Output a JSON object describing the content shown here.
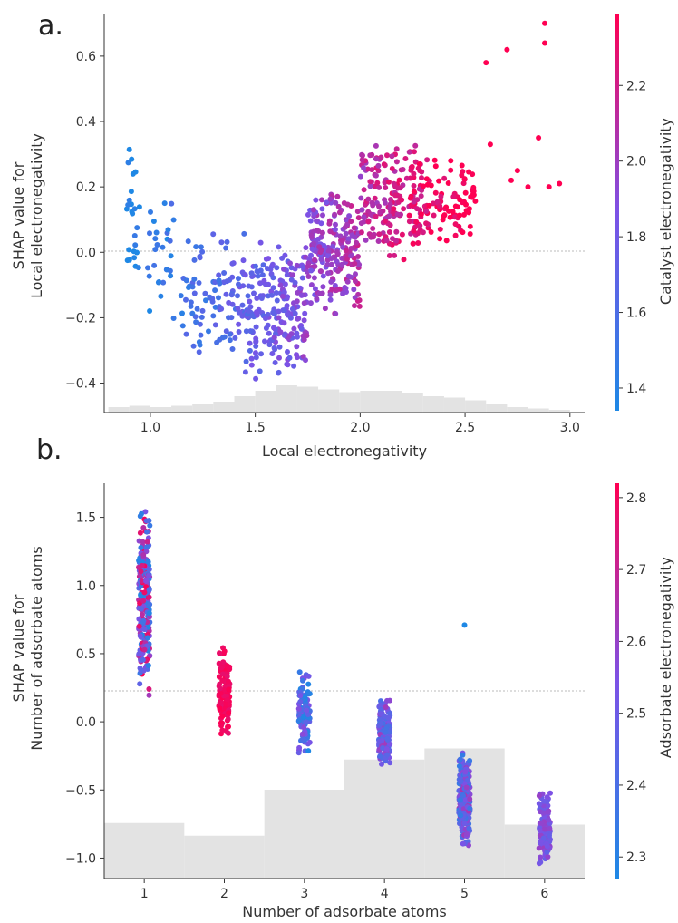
{
  "chart_data": [
    {
      "panel": "a.",
      "type": "scatter",
      "xlabel": "Local electronegativity",
      "ylabel_lines": [
        "SHAP value for",
        "Local electronegativity"
      ],
      "xlim": [
        0.78,
        3.07
      ],
      "ylim": [
        -0.49,
        0.73
      ],
      "xticks": [
        "1.0",
        "1.5",
        "2.0",
        "2.5",
        "3.0"
      ],
      "yticks": [
        "0.6",
        "0.4",
        "0.2",
        "0.0",
        "−0.2",
        "−0.4"
      ],
      "colorbar": {
        "label": "Catalyst electronegativity",
        "ticks": [
          "1.4",
          "1.6",
          "1.8",
          "2.0",
          "2.2"
        ],
        "range": [
          1.34,
          2.39
        ],
        "colors": [
          "#1e88e5",
          "#7c52e6",
          "#ff0052"
        ]
      },
      "histogram": {
        "bins": [
          0.85,
          0.95,
          1.05,
          1.15,
          1.25,
          1.35,
          1.45,
          1.55,
          1.65,
          1.75,
          1.85,
          1.95,
          2.05,
          2.15,
          2.25,
          2.35,
          2.45,
          2.55,
          2.65,
          2.75,
          2.85,
          2.95
        ],
        "heights": [
          0.2,
          0.25,
          0.2,
          0.25,
          0.3,
          0.4,
          0.6,
          0.8,
          1.0,
          0.95,
          0.85,
          0.75,
          0.8,
          0.8,
          0.7,
          0.6,
          0.55,
          0.45,
          0.3,
          0.2,
          0.15,
          0.1
        ]
      },
      "clusters": [
        {
          "x": [
            0.88,
            0.95
          ],
          "y": [
            -0.24,
            0.38
          ],
          "n": 25
        },
        {
          "x": [
            0.98,
            1.15
          ],
          "y": [
            -0.24,
            0.24
          ],
          "n": 30
        },
        {
          "x": [
            1.15,
            1.45
          ],
          "y": [
            -0.35,
            0.08
          ],
          "n": 100
        },
        {
          "x": [
            1.45,
            1.75
          ],
          "y": [
            -0.4,
            0.05
          ],
          "n": 220
        },
        {
          "x": [
            1.75,
            2.0
          ],
          "y": [
            -0.2,
            0.2
          ],
          "n": 230
        },
        {
          "x": [
            2.0,
            2.3
          ],
          "y": [
            -0.05,
            0.35
          ],
          "n": 200
        },
        {
          "x": [
            2.3,
            2.55
          ],
          "y": [
            0.0,
            0.3
          ],
          "n": 90
        }
      ],
      "outliers": [
        [
          2.6,
          0.58
        ],
        [
          2.7,
          0.62
        ],
        [
          2.88,
          0.7
        ],
        [
          2.88,
          0.64
        ],
        [
          2.75,
          0.25
        ],
        [
          2.85,
          0.35
        ],
        [
          2.95,
          0.21
        ],
        [
          2.62,
          0.33
        ],
        [
          2.72,
          0.22
        ],
        [
          2.8,
          0.2
        ],
        [
          2.9,
          0.2
        ]
      ]
    },
    {
      "panel": "b.",
      "type": "scatter",
      "xlabel": "Number of adsorbate atoms",
      "ylabel_lines": [
        "SHAP value for",
        "Number of adsorbate atoms"
      ],
      "xlim": [
        0.5,
        6.5
      ],
      "ylim": [
        -1.15,
        1.75
      ],
      "xticks": [
        "1",
        "2",
        "3",
        "4",
        "5",
        "6"
      ],
      "yticks": [
        "1.5",
        "1.0",
        "0.5",
        "0.0",
        "−0.5",
        "−1.0"
      ],
      "colorbar": {
        "label": "Adsorbate electronegativity",
        "ticks": [
          "2.3",
          "2.4",
          "2.5",
          "2.6",
          "2.7",
          "2.8"
        ],
        "range": [
          2.27,
          2.82
        ],
        "colors": [
          "#1e88e5",
          "#7c52e6",
          "#ff0052"
        ]
      },
      "histogram": {
        "categories": [
          1,
          2,
          3,
          4,
          5,
          6
        ],
        "heights": [
          0.35,
          0.27,
          0.56,
          0.75,
          0.82,
          0.34
        ]
      },
      "clusters": [
        {
          "x": 1,
          "y": [
            0.15,
            1.63
          ],
          "n": 240
        },
        {
          "x": 2,
          "y": [
            -0.17,
            0.58
          ],
          "n": 130
        },
        {
          "x": 3,
          "y": [
            -0.28,
            0.4
          ],
          "n": 110
        },
        {
          "x": 4,
          "y": [
            -0.33,
            0.18
          ],
          "n": 150
        },
        {
          "x": 5,
          "y": [
            -0.92,
            -0.22
          ],
          "n": 240
        },
        {
          "x": 6,
          "y": [
            -1.07,
            -0.5
          ],
          "n": 130
        }
      ],
      "outliers": [
        [
          5,
          0.71
        ]
      ]
    }
  ]
}
